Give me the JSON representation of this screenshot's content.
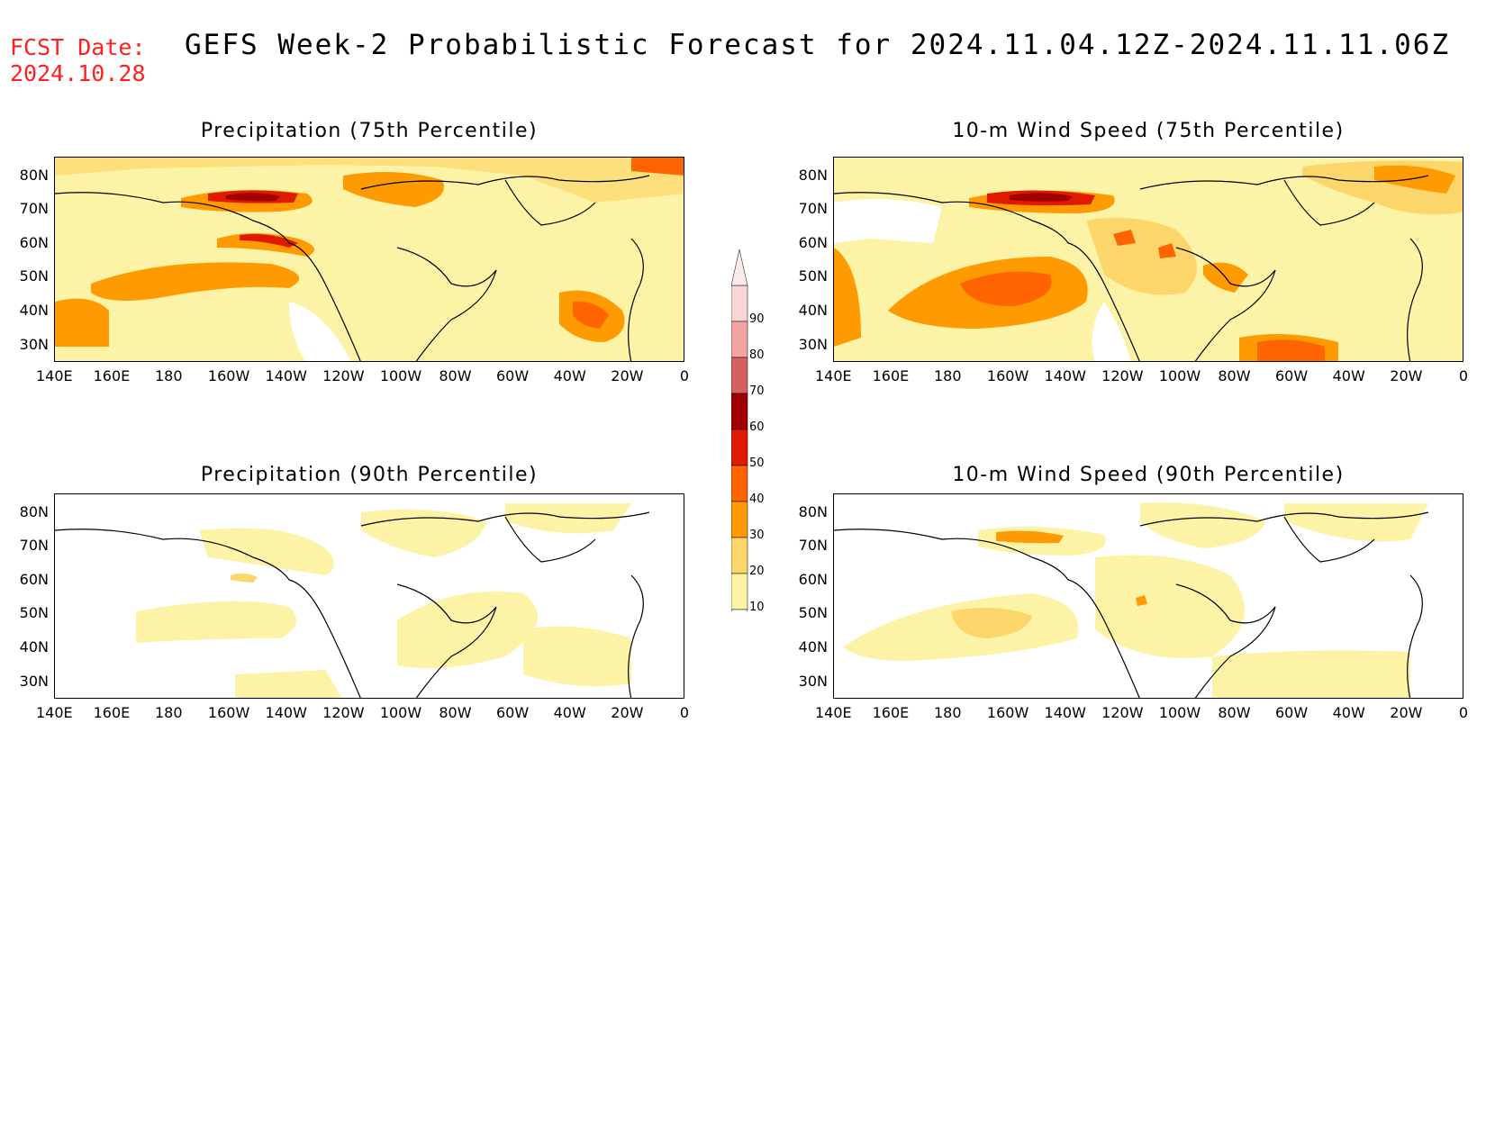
{
  "header": {
    "fcst_label": "FCST Date:",
    "fcst_date": "2024.10.28",
    "title": "GEFS Week-2 Probabilistic Forecast for 2024.11.04.12Z-2024.11.11.06Z"
  },
  "panels": [
    {
      "title": "Precipitation (75th Percentile)"
    },
    {
      "title": "10-m Wind Speed (75th Percentile)"
    },
    {
      "title": "Precipitation (90th Percentile)"
    },
    {
      "title": "10-m Wind Speed (90th Percentile)"
    }
  ],
  "axes": {
    "lon_labels": [
      "140E",
      "160E",
      "180",
      "160W",
      "140W",
      "120W",
      "100W",
      "80W",
      "60W",
      "40W",
      "20W",
      "0"
    ],
    "lat_labels": [
      "80N",
      "70N",
      "60N",
      "50N",
      "40N",
      "30N"
    ]
  },
  "colorbar": {
    "levels": [
      "90",
      "80",
      "70",
      "60",
      "50",
      "40",
      "30",
      "20",
      "10"
    ],
    "colors": [
      "#f9d6d6",
      "#f2a3a3",
      "#d66060",
      "#a00000",
      "#e01a00",
      "#ff6400",
      "#ff9a00",
      "#fcd66a",
      "#fdf3a6"
    ]
  },
  "map_colors": {
    "c10": "#fdf3a6",
    "c20": "#fcd66a",
    "c30": "#ff9a00",
    "c40": "#ff6400",
    "c50": "#e01a00",
    "c60": "#a00000"
  }
}
